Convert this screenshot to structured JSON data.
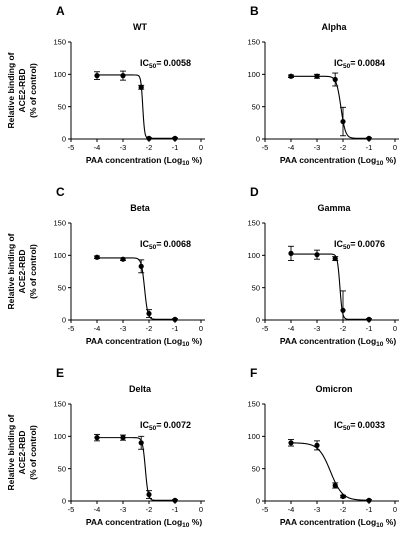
{
  "figure": {
    "ylabel_line1": "Relative binding of",
    "ylabel_line2": "ACE2-RBD",
    "ylabel_line3": "(% of control)",
    "xlabel_main": "PAA concentration (Log",
    "xlabel_sub": "10",
    "xlabel_end": " %)",
    "ic50_prefix": "IC",
    "ic50_sub": "50",
    "ic50_sep": "="
  },
  "chart_data": [
    {
      "type": "scatter",
      "letter": "A",
      "title": "WT",
      "ic50_value": "0.0058",
      "xlim": [
        -5,
        0
      ],
      "ylim": [
        0,
        150
      ],
      "x_ticks": [
        -5,
        -4,
        -3,
        -2,
        -1,
        0
      ],
      "y_ticks": [
        0,
        50,
        100,
        150
      ],
      "points": [
        {
          "x": -4,
          "y": 98,
          "err": 6
        },
        {
          "x": -3,
          "y": 98,
          "err": 7
        },
        {
          "x": -2.3,
          "y": 80,
          "err": 3
        },
        {
          "x": -2,
          "y": 1,
          "err": 1
        },
        {
          "x": -1,
          "y": 1,
          "err": 1
        }
      ],
      "fit": {
        "top": 99,
        "bottom": 1,
        "log_ic50": -2.24,
        "hill": -12
      }
    },
    {
      "type": "scatter",
      "letter": "B",
      "title": "Alpha",
      "ic50_value": "0.0084",
      "xlim": [
        -5,
        0
      ],
      "ylim": [
        0,
        150
      ],
      "x_ticks": [
        -5,
        -4,
        -3,
        -2,
        -1,
        0
      ],
      "y_ticks": [
        0,
        50,
        100,
        150
      ],
      "points": [
        {
          "x": -4,
          "y": 97,
          "err": 2
        },
        {
          "x": -3,
          "y": 97,
          "err": 3
        },
        {
          "x": -2.3,
          "y": 92,
          "err": 10
        },
        {
          "x": -2,
          "y": 27,
          "err": 22
        },
        {
          "x": -1,
          "y": 1,
          "err": 1
        }
      ],
      "fit": {
        "top": 97,
        "bottom": 1,
        "log_ic50": -2.08,
        "hill": -5
      }
    },
    {
      "type": "scatter",
      "letter": "C",
      "title": "Beta",
      "ic50_value": "0.0068",
      "xlim": [
        -5,
        0
      ],
      "ylim": [
        0,
        150
      ],
      "x_ticks": [
        -5,
        -4,
        -3,
        -2,
        -1,
        0
      ],
      "y_ticks": [
        0,
        50,
        100,
        150
      ],
      "points": [
        {
          "x": -4,
          "y": 97,
          "err": 2
        },
        {
          "x": -3,
          "y": 94,
          "err": 2
        },
        {
          "x": -2.3,
          "y": 83,
          "err": 10
        },
        {
          "x": -2,
          "y": 10,
          "err": 6
        },
        {
          "x": -1,
          "y": 1,
          "err": 1
        }
      ],
      "fit": {
        "top": 96,
        "bottom": 1,
        "log_ic50": -2.17,
        "hill": -7
      }
    },
    {
      "type": "scatter",
      "letter": "D",
      "title": "Gamma",
      "ic50_value": "0.0076",
      "xlim": [
        -5,
        0
      ],
      "ylim": [
        0,
        150
      ],
      "x_ticks": [
        -5,
        -4,
        -3,
        -2,
        -1,
        0
      ],
      "y_ticks": [
        0,
        50,
        100,
        150
      ],
      "points": [
        {
          "x": -4,
          "y": 103,
          "err": 11
        },
        {
          "x": -3,
          "y": 101,
          "err": 7
        },
        {
          "x": -2.3,
          "y": 95,
          "err": 3
        },
        {
          "x": -2,
          "y": 15,
          "err": 30
        },
        {
          "x": -1,
          "y": 1,
          "err": 1
        }
      ],
      "fit": {
        "top": 102,
        "bottom": 1,
        "log_ic50": -2.12,
        "hill": -9
      }
    },
    {
      "type": "scatter",
      "letter": "E",
      "title": "Delta",
      "ic50_value": "0.0072",
      "xlim": [
        -5,
        0
      ],
      "ylim": [
        0,
        150
      ],
      "x_ticks": [
        -5,
        -4,
        -3,
        -2,
        -1,
        0
      ],
      "y_ticks": [
        0,
        50,
        100,
        150
      ],
      "points": [
        {
          "x": -4,
          "y": 98,
          "err": 5
        },
        {
          "x": -3,
          "y": 98,
          "err": 4
        },
        {
          "x": -2.3,
          "y": 90,
          "err": 10
        },
        {
          "x": -2,
          "y": 10,
          "err": 6
        },
        {
          "x": -1,
          "y": 1,
          "err": 1
        }
      ],
      "fit": {
        "top": 98,
        "bottom": 1,
        "log_ic50": -2.14,
        "hill": -8
      }
    },
    {
      "type": "scatter",
      "letter": "F",
      "title": "Omicron",
      "ic50_value": "0.0033",
      "xlim": [
        -5,
        0
      ],
      "ylim": [
        0,
        150
      ],
      "x_ticks": [
        -5,
        -4,
        -3,
        -2,
        -1,
        0
      ],
      "y_ticks": [
        0,
        50,
        100,
        150
      ],
      "points": [
        {
          "x": -4,
          "y": 90,
          "err": 5
        },
        {
          "x": -3,
          "y": 86,
          "err": 7
        },
        {
          "x": -2.3,
          "y": 24,
          "err": 4
        },
        {
          "x": -2,
          "y": 7,
          "err": 2
        },
        {
          "x": -1,
          "y": 1,
          "err": 1
        }
      ],
      "fit": {
        "top": 90,
        "bottom": 1,
        "log_ic50": -2.48,
        "hill": -1.9
      }
    }
  ]
}
